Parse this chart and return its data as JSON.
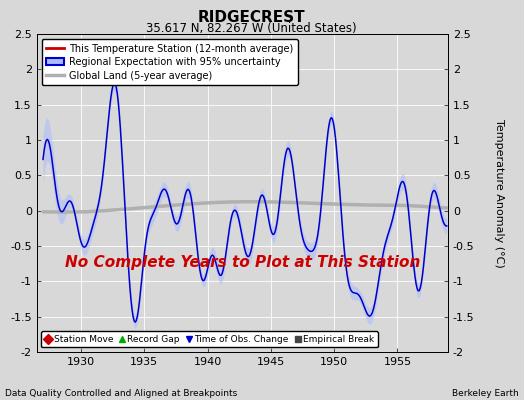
{
  "title": "RIDGECREST",
  "subtitle": "35.617 N, 82.267 W (United States)",
  "ylabel": "Temperature Anomaly (°C)",
  "xlabel_left": "Data Quality Controlled and Aligned at Breakpoints",
  "xlabel_right": "Berkeley Earth",
  "ylim": [
    -2.0,
    2.5
  ],
  "xlim": [
    1926.5,
    1959.0
  ],
  "xticks": [
    1930,
    1935,
    1940,
    1945,
    1950,
    1955
  ],
  "yticks": [
    -2,
    -1.5,
    -1,
    -0.5,
    0,
    0.5,
    1,
    1.5,
    2,
    2.5
  ],
  "bg_color": "#d8d8d8",
  "plot_bg_color": "#d8d8d8",
  "regional_color": "#0000cc",
  "regional_shade_color": "#aabbff",
  "global_land_color": "#b0b0b0",
  "global_land_lw": 2.5,
  "station_color": "#cc0000",
  "annotation_text": "No Complete Years to Plot at This Station",
  "annotation_color": "#cc0000",
  "annotation_fontsize": 11,
  "legend1_items": [
    {
      "label": "This Temperature Station (12-month average)",
      "color": "#cc0000",
      "lw": 2
    },
    {
      "label": "Regional Expectation with 95% uncertainty",
      "color": "#0000cc",
      "lw": 2,
      "shade": "#aabbff"
    },
    {
      "label": "Global Land (5-year average)",
      "color": "#b0b0b0",
      "lw": 2
    }
  ],
  "legend2_items": [
    {
      "label": "Station Move",
      "marker": "D",
      "color": "#cc0000"
    },
    {
      "label": "Record Gap",
      "marker": "^",
      "color": "#00aa00"
    },
    {
      "label": "Time of Obs. Change",
      "marker": "v",
      "color": "#0000cc"
    },
    {
      "label": "Empirical Break",
      "marker": "s",
      "color": "#444444"
    }
  ],
  "figsize": [
    5.24,
    4.0
  ],
  "dpi": 100
}
